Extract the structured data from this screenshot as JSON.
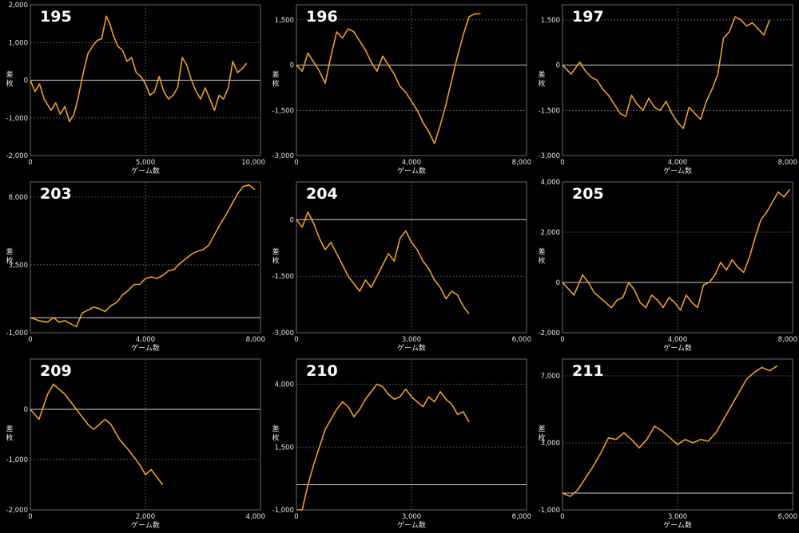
{
  "colors": {
    "background": "#000000",
    "line": "#f0a020",
    "grid": "#6a6a6a",
    "zero_line": "#d0d0d0",
    "text": "#e6e6e6"
  },
  "chart_data": [
    {
      "type": "line",
      "title": "195",
      "xlabel": "ゲーム数",
      "ylabel": "差枚",
      "xlim": [
        0,
        10000
      ],
      "ylim": [
        -2000,
        2000
      ],
      "xticks": [
        0,
        5000,
        10000
      ],
      "xtick_labels": [
        "0",
        "5,000",
        "10,000"
      ],
      "yticks": [
        -2000,
        -1000,
        0,
        1000,
        2000
      ],
      "ytick_labels": [
        "-2,000",
        "-1,000",
        "0",
        "1,000",
        "2,000"
      ],
      "grid": true,
      "x": [
        0,
        200,
        400,
        600,
        900,
        1100,
        1300,
        1500,
        1700,
        1900,
        2100,
        2300,
        2500,
        2700,
        2900,
        3100,
        3300,
        3450,
        3600,
        3800,
        4000,
        4200,
        4400,
        4600,
        4800,
        5000,
        5200,
        5400,
        5600,
        5800,
        6000,
        6200,
        6400,
        6600,
        6800,
        7000,
        7200,
        7400,
        7600,
        7800,
        8000,
        8200,
        8400,
        8600,
        8800,
        9000,
        9200,
        9400
      ],
      "y": [
        0,
        -300,
        -100,
        -500,
        -800,
        -600,
        -900,
        -700,
        -1100,
        -900,
        -400,
        200,
        700,
        900,
        1050,
        1100,
        1700,
        1500,
        1200,
        900,
        800,
        500,
        600,
        200,
        100,
        -100,
        -400,
        -300,
        100,
        -300,
        -500,
        -400,
        -200,
        600,
        400,
        0,
        -300,
        -500,
        -200,
        -500,
        -800,
        -400,
        -500,
        -200,
        500,
        200,
        300,
        450
      ],
      "series_color": "#f0a020"
    },
    {
      "type": "line",
      "title": "196",
      "xlabel": "ゲーム数",
      "ylabel": "差枚",
      "xlim": [
        0,
        8000
      ],
      "ylim": [
        -3000,
        2000
      ],
      "xticks": [
        0,
        4000,
        8000
      ],
      "xtick_labels": [
        "0",
        "4,000",
        "8,000"
      ],
      "yticks": [
        -3000,
        -1500,
        0,
        1500
      ],
      "ytick_labels": [
        "-3,000",
        "-1,500",
        "0",
        "1,500"
      ],
      "grid": true,
      "x": [
        0,
        200,
        400,
        600,
        800,
        1000,
        1200,
        1400,
        1600,
        1800,
        2000,
        2200,
        2400,
        2600,
        2800,
        3000,
        3200,
        3400,
        3600,
        3800,
        4000,
        4200,
        4400,
        4600,
        4800,
        5000,
        5200,
        5400,
        5600,
        5800,
        6000,
        6200,
        6400
      ],
      "y": [
        0,
        -200,
        400,
        100,
        -200,
        -600,
        300,
        1100,
        900,
        1200,
        1100,
        800,
        500,
        100,
        -200,
        300,
        0,
        -300,
        -700,
        -900,
        -1200,
        -1500,
        -1900,
        -2200,
        -2600,
        -2000,
        -1300,
        -500,
        300,
        1000,
        1600,
        1700,
        1700
      ],
      "series_color": "#f0a020"
    },
    {
      "type": "line",
      "title": "197",
      "xlabel": "ゲーム数",
      "ylabel": "差枚",
      "xlim": [
        0,
        8000
      ],
      "ylim": [
        -3000,
        2000
      ],
      "xticks": [
        0,
        4000,
        8000
      ],
      "xtick_labels": [
        "0",
        "4,000",
        "8,000"
      ],
      "yticks": [
        -3000,
        -1500,
        0,
        1500
      ],
      "ytick_labels": [
        "-3,000",
        "-1,500",
        "0",
        "1,500"
      ],
      "grid": true,
      "x": [
        0,
        300,
        600,
        800,
        1000,
        1200,
        1400,
        1600,
        1800,
        2000,
        2200,
        2400,
        2600,
        2800,
        3000,
        3200,
        3400,
        3600,
        3800,
        4000,
        4200,
        4400,
        4600,
        4800,
        5000,
        5200,
        5400,
        5600,
        5800,
        6000,
        6200,
        6400,
        6600,
        6800,
        7000,
        7200
      ],
      "y": [
        0,
        -300,
        100,
        -200,
        -400,
        -500,
        -800,
        -1000,
        -1300,
        -1600,
        -1700,
        -1000,
        -1300,
        -1500,
        -1100,
        -1400,
        -1500,
        -1200,
        -1600,
        -1900,
        -2100,
        -1400,
        -1600,
        -1800,
        -1200,
        -800,
        -300,
        900,
        1100,
        1600,
        1500,
        1300,
        1400,
        1200,
        1000,
        1500
      ],
      "series_color": "#f0a020"
    },
    {
      "type": "line",
      "title": "203",
      "xlabel": "ゲーム数",
      "ylabel": "差枚",
      "xlim": [
        0,
        8000
      ],
      "ylim": [
        -1000,
        9000
      ],
      "xticks": [
        0,
        4000,
        8000
      ],
      "xtick_labels": [
        "0",
        "4,000",
        "8,000"
      ],
      "yticks": [
        -1000,
        3500,
        8000
      ],
      "ytick_labels": [
        "-1,000",
        "3,500",
        "8,000"
      ],
      "grid": true,
      "x": [
        0,
        300,
        600,
        800,
        1000,
        1200,
        1400,
        1600,
        1800,
        2000,
        2200,
        2400,
        2600,
        2800,
        3000,
        3200,
        3400,
        3600,
        3800,
        4000,
        4200,
        4400,
        4600,
        4800,
        5000,
        5200,
        5400,
        5600,
        5800,
        6000,
        6200,
        6400,
        6600,
        6800,
        7000,
        7200,
        7400,
        7600,
        7800
      ],
      "y": [
        0,
        -200,
        -300,
        0,
        -300,
        -200,
        -400,
        -600,
        300,
        500,
        700,
        600,
        400,
        800,
        1000,
        1500,
        1800,
        2200,
        2200,
        2600,
        2700,
        2600,
        2800,
        3100,
        3200,
        3600,
        3900,
        4200,
        4400,
        4500,
        4800,
        5500,
        6200,
        6800,
        7500,
        8200,
        8700,
        8800,
        8500
      ],
      "series_color": "#f0a020"
    },
    {
      "type": "line",
      "title": "204",
      "xlabel": "ゲーム数",
      "ylabel": "差枚",
      "xlim": [
        0,
        6000
      ],
      "ylim": [
        -3000,
        1000
      ],
      "xticks": [
        0,
        3000,
        6000
      ],
      "xtick_labels": [
        "0",
        "3,000",
        "6,000"
      ],
      "yticks": [
        -3000,
        -1500,
        0
      ],
      "ytick_labels": [
        "-3,000",
        "-1,500",
        "0"
      ],
      "grid": true,
      "x": [
        0,
        150,
        300,
        450,
        600,
        750,
        900,
        1050,
        1200,
        1350,
        1500,
        1650,
        1800,
        1950,
        2100,
        2250,
        2400,
        2550,
        2700,
        2850,
        3000,
        3150,
        3300,
        3450,
        3600,
        3750,
        3900,
        4050,
        4200,
        4350,
        4500
      ],
      "y": [
        0,
        -200,
        200,
        -100,
        -500,
        -800,
        -600,
        -900,
        -1200,
        -1500,
        -1700,
        -1900,
        -1600,
        -1800,
        -1500,
        -1200,
        -900,
        -1100,
        -500,
        -300,
        -600,
        -800,
        -1100,
        -1300,
        -1600,
        -1800,
        -2100,
        -1900,
        -2000,
        -2300,
        -2500
      ],
      "series_color": "#f0a020"
    },
    {
      "type": "line",
      "title": "205",
      "xlabel": "ゲーム数",
      "ylabel": "差枚",
      "xlim": [
        0,
        8000
      ],
      "ylim": [
        -2000,
        4000
      ],
      "xticks": [
        0,
        4000,
        8000
      ],
      "xtick_labels": [
        "0",
        "4,000",
        "8,000"
      ],
      "yticks": [
        -2000,
        0,
        2000,
        4000
      ],
      "ytick_labels": [
        "-2,000",
        "0",
        "2,000",
        "4,000"
      ],
      "grid": true,
      "x": [
        0,
        400,
        700,
        900,
        1100,
        1300,
        1500,
        1700,
        1900,
        2100,
        2300,
        2500,
        2700,
        2900,
        3100,
        3300,
        3500,
        3700,
        3900,
        4100,
        4300,
        4500,
        4700,
        4900,
        5100,
        5300,
        5500,
        5700,
        5900,
        6100,
        6300,
        6500,
        6700,
        6900,
        7100,
        7300,
        7500,
        7700,
        7900
      ],
      "y": [
        0,
        -500,
        300,
        0,
        -400,
        -600,
        -800,
        -1000,
        -700,
        -600,
        0,
        -300,
        -800,
        -1000,
        -500,
        -700,
        -1000,
        -600,
        -800,
        -1100,
        -500,
        -800,
        -1000,
        -100,
        0,
        300,
        800,
        500,
        900,
        600,
        400,
        1000,
        1800,
        2500,
        2800,
        3200,
        3600,
        3400,
        3700
      ],
      "series_color": "#f0a020"
    },
    {
      "type": "line",
      "title": "209",
      "xlabel": "ゲーム数",
      "ylabel": "差枚",
      "xlim": [
        0,
        4000
      ],
      "ylim": [
        -2000,
        1000
      ],
      "xticks": [
        0,
        2000,
        4000
      ],
      "xtick_labels": [
        "0",
        "2,000",
        "4,000"
      ],
      "yticks": [
        -2000,
        -1000,
        0
      ],
      "ytick_labels": [
        "-2,000",
        "-1,000",
        "0"
      ],
      "grid": true,
      "x": [
        0,
        150,
        300,
        400,
        600,
        800,
        1000,
        1100,
        1300,
        1400,
        1550,
        1700,
        1900,
        2000,
        2100,
        2300
      ],
      "y": [
        0,
        -200,
        300,
        500,
        300,
        0,
        -300,
        -400,
        -200,
        -300,
        -600,
        -800,
        -1100,
        -1300,
        -1200,
        -1500
      ],
      "series_color": "#f0a020"
    },
    {
      "type": "line",
      "title": "210",
      "xlabel": "ゲーム数",
      "ylabel": "差枚",
      "xlim": [
        0,
        6000
      ],
      "ylim": [
        -1000,
        5000
      ],
      "xticks": [
        0,
        3000,
        6000
      ],
      "xtick_labels": [
        "0",
        "3,000",
        "6,000"
      ],
      "yticks": [
        -1000,
        1500,
        4000
      ],
      "ytick_labels": [
        "-1,000",
        "1,500",
        "4,000"
      ],
      "grid": true,
      "x": [
        0,
        150,
        300,
        450,
        600,
        750,
        900,
        1050,
        1200,
        1350,
        1500,
        1650,
        1800,
        1950,
        2100,
        2250,
        2400,
        2550,
        2700,
        2850,
        3000,
        3150,
        3300,
        3450,
        3600,
        3750,
        3900,
        4050,
        4200,
        4350,
        4500
      ],
      "y": [
        -1000,
        -1000,
        0,
        800,
        1500,
        2200,
        2600,
        3000,
        3300,
        3100,
        2700,
        3000,
        3400,
        3700,
        4000,
        3900,
        3600,
        3400,
        3500,
        3800,
        3500,
        3300,
        3100,
        3500,
        3300,
        3700,
        3400,
        3200,
        2800,
        2900,
        2500
      ],
      "series_color": "#f0a020"
    },
    {
      "type": "line",
      "title": "211",
      "xlabel": "ゲーム数",
      "ylabel": "差枚",
      "xlim": [
        0,
        6000
      ],
      "ylim": [
        -1000,
        8000
      ],
      "xticks": [
        0,
        3000,
        6000
      ],
      "xtick_labels": [
        "0",
        "3,000",
        "6,000"
      ],
      "yticks": [
        -1000,
        3000,
        7000
      ],
      "ytick_labels": [
        "-1,000",
        "3,000",
        "7,000"
      ],
      "grid": true,
      "x": [
        0,
        200,
        400,
        600,
        800,
        1000,
        1200,
        1400,
        1600,
        1800,
        2000,
        2200,
        2400,
        2600,
        2800,
        3000,
        3200,
        3400,
        3600,
        3800,
        4000,
        4200,
        4400,
        4600,
        4800,
        5000,
        5200,
        5400,
        5600
      ],
      "y": [
        0,
        -200,
        200,
        900,
        1600,
        2400,
        3300,
        3200,
        3600,
        3200,
        2700,
        3200,
        4000,
        3700,
        3300,
        2900,
        3200,
        3000,
        3200,
        3100,
        3600,
        4400,
        5200,
        6000,
        6800,
        7200,
        7500,
        7300,
        7600
      ],
      "series_color": "#f0a020"
    }
  ]
}
